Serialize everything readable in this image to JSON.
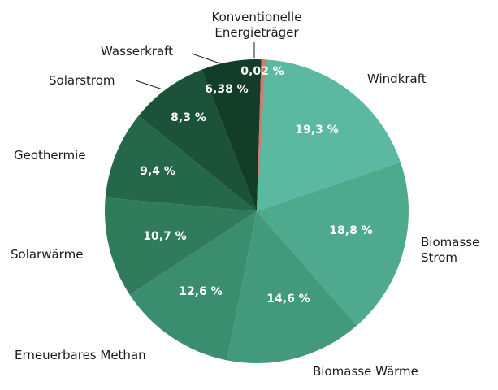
{
  "chart_data": {
    "type": "pie",
    "title": "",
    "slices": [
      {
        "label": "Windkraft",
        "value": 19.3,
        "value_label": "19,3 %",
        "color": "#5bb8a1"
      },
      {
        "label": "Biomasse Strom",
        "value": 18.8,
        "value_label": "18,8 %",
        "color": "#4ea98d"
      },
      {
        "label": "Biomasse Wärme",
        "value": 14.6,
        "value_label": "14,6 %",
        "color": "#42997c"
      },
      {
        "label": "Erneuerbares Methan",
        "value": 12.6,
        "value_label": "12,6 %",
        "color": "#3b8d6f"
      },
      {
        "label": "Solarwärme",
        "value": 10.7,
        "value_label": "10,7 %",
        "color": "#2f7b5c"
      },
      {
        "label": "Geothermie",
        "value": 9.4,
        "value_label": "9,4 %",
        "color": "#25674a"
      },
      {
        "label": "Solarstrom",
        "value": 8.3,
        "value_label": "8,3 %",
        "color": "#1c5239"
      },
      {
        "label": "Wasserkraft",
        "value": 6.38,
        "value_label": "6,38 %",
        "color": "#133d28"
      },
      {
        "label": "Konventionelle Energieträger",
        "value": 0.02,
        "value_label": "0,02 %",
        "color": "#d9776e"
      }
    ]
  }
}
